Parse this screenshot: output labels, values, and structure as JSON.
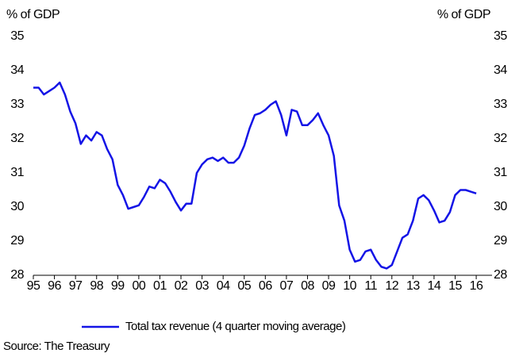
{
  "chart_data": {
    "type": "line",
    "y_label": "% of GDP",
    "y2_label": "% of GDP",
    "legend_position": "bottom",
    "source": "Source: The Treasury",
    "xlim": [
      1995,
      2016.75
    ],
    "xticks": [
      {
        "value": 1995,
        "label": "95"
      },
      {
        "value": 1996,
        "label": "96"
      },
      {
        "value": 1997,
        "label": "97"
      },
      {
        "value": 1998,
        "label": "98"
      },
      {
        "value": 1999,
        "label": "99"
      },
      {
        "value": 2000,
        "label": "00"
      },
      {
        "value": 2001,
        "label": "01"
      },
      {
        "value": 2002,
        "label": "02"
      },
      {
        "value": 2003,
        "label": "03"
      },
      {
        "value": 2004,
        "label": "04"
      },
      {
        "value": 2005,
        "label": "05"
      },
      {
        "value": 2006,
        "label": "06"
      },
      {
        "value": 2007,
        "label": "07"
      },
      {
        "value": 2008,
        "label": "08"
      },
      {
        "value": 2009,
        "label": "09"
      },
      {
        "value": 2010,
        "label": "10"
      },
      {
        "value": 2011,
        "label": "11"
      },
      {
        "value": 2012,
        "label": "12"
      },
      {
        "value": 2013,
        "label": "13"
      },
      {
        "value": 2014,
        "label": "14"
      },
      {
        "value": 2015,
        "label": "15"
      },
      {
        "value": 2016,
        "label": "16"
      }
    ],
    "ylim": [
      28,
      35
    ],
    "yticks": [
      28,
      29,
      30,
      31,
      32,
      33,
      34,
      35
    ],
    "y2lim": [
      28,
      35
    ],
    "y2ticks": [
      28,
      29,
      30,
      31,
      32,
      33,
      34,
      35
    ],
    "x": [
      1995,
      1995.25,
      1995.5,
      1995.75,
      1996,
      1996.25,
      1996.5,
      1996.75,
      1997,
      1997.25,
      1997.5,
      1997.75,
      1998,
      1998.25,
      1998.5,
      1998.75,
      1999,
      1999.25,
      1999.5,
      1999.75,
      2000,
      2000.25,
      2000.5,
      2000.75,
      2001,
      2001.25,
      2001.5,
      2001.75,
      2002,
      2002.25,
      2002.5,
      2002.75,
      2003,
      2003.25,
      2003.5,
      2003.75,
      2004,
      2004.25,
      2004.5,
      2004.75,
      2005,
      2005.25,
      2005.5,
      2005.75,
      2006,
      2006.25,
      2006.5,
      2006.75,
      2007,
      2007.25,
      2007.5,
      2007.75,
      2008,
      2008.25,
      2008.5,
      2008.75,
      2009,
      2009.25,
      2009.5,
      2009.75,
      2010,
      2010.25,
      2010.5,
      2010.75,
      2011,
      2011.25,
      2011.5,
      2011.75,
      2012,
      2012.25,
      2012.5,
      2012.75,
      2013,
      2013.25,
      2013.5,
      2013.75,
      2014,
      2014.25,
      2014.5,
      2014.75,
      2015,
      2015.25,
      2015.5,
      2015.75,
      2016
    ],
    "series": [
      {
        "name": "Total tax revenue (4 quarter moving average)",
        "color": "#1414e6",
        "values": [
          33.5,
          33.5,
          33.3,
          33.4,
          33.5,
          33.65,
          33.3,
          32.8,
          32.45,
          31.85,
          32.1,
          31.95,
          32.2,
          32.1,
          31.7,
          31.4,
          30.65,
          30.35,
          29.95,
          30.0,
          30.05,
          30.3,
          30.6,
          30.55,
          30.8,
          30.7,
          30.45,
          30.15,
          29.9,
          30.1,
          30.1,
          31.0,
          31.25,
          31.4,
          31.45,
          31.35,
          31.45,
          31.3,
          31.3,
          31.45,
          31.8,
          32.3,
          32.7,
          32.75,
          32.85,
          33.0,
          33.1,
          32.7,
          32.1,
          32.85,
          32.8,
          32.4,
          32.4,
          32.55,
          32.75,
          32.4,
          32.1,
          31.5,
          30.05,
          29.6,
          28.75,
          28.4,
          28.45,
          28.7,
          28.75,
          28.45,
          28.25,
          28.2,
          28.3,
          28.7,
          29.1,
          29.2,
          29.6,
          30.25,
          30.35,
          30.2,
          29.9,
          29.55,
          29.6,
          29.85,
          30.35,
          30.5,
          30.5,
          30.45,
          30.4
        ]
      }
    ]
  }
}
